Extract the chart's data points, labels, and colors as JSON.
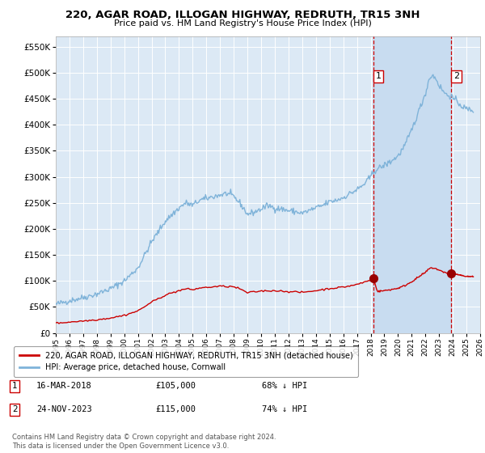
{
  "title": "220, AGAR ROAD, ILLOGAN HIGHWAY, REDRUTH, TR15 3NH",
  "subtitle": "Price paid vs. HM Land Registry's House Price Index (HPI)",
  "background_color": "#ffffff",
  "plot_bg_color": "#dce9f5",
  "grid_color": "#ffffff",
  "shade_color": "#c8dcf0",
  "ylim": [
    0,
    570000
  ],
  "yticks": [
    0,
    50000,
    100000,
    150000,
    200000,
    250000,
    300000,
    350000,
    400000,
    450000,
    500000,
    550000
  ],
  "sale1_date": 2018.21,
  "sale1_price": 105000,
  "sale2_date": 2023.9,
  "sale2_price": 115000,
  "vline_color": "#cc0000",
  "sale_dot_color": "#990000",
  "hpi_color": "#7fb3d9",
  "price_color": "#cc0000",
  "legend_label_price": "220, AGAR ROAD, ILLOGAN HIGHWAY, REDRUTH, TR15 3NH (detached house)",
  "legend_label_hpi": "HPI: Average price, detached house, Cornwall",
  "annotation1": [
    "1",
    "16-MAR-2018",
    "£105,000",
    "68% ↓ HPI"
  ],
  "annotation2": [
    "2",
    "24-NOV-2023",
    "£115,000",
    "74% ↓ HPI"
  ],
  "footnote": "Contains HM Land Registry data © Crown copyright and database right 2024.\nThis data is licensed under the Open Government Licence v3.0.",
  "xmin": 1995,
  "xmax": 2026
}
